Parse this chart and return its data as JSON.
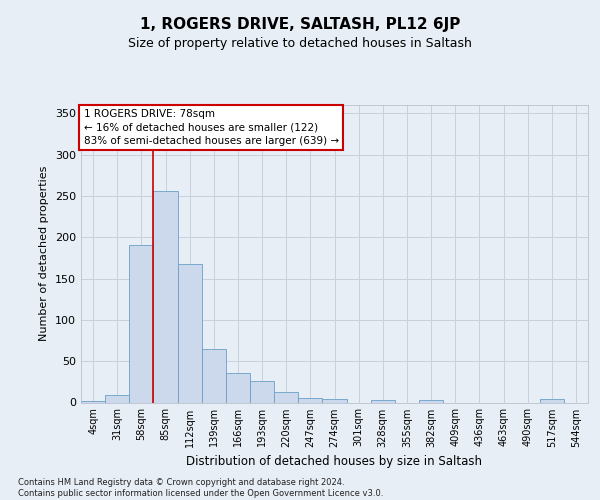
{
  "title": "1, ROGERS DRIVE, SALTASH, PL12 6JP",
  "subtitle": "Size of property relative to detached houses in Saltash",
  "xlabel": "Distribution of detached houses by size in Saltash",
  "ylabel": "Number of detached properties",
  "bar_labels": [
    "4sqm",
    "31sqm",
    "58sqm",
    "85sqm",
    "112sqm",
    "139sqm",
    "166sqm",
    "193sqm",
    "220sqm",
    "247sqm",
    "274sqm",
    "301sqm",
    "328sqm",
    "355sqm",
    "382sqm",
    "409sqm",
    "436sqm",
    "463sqm",
    "490sqm",
    "517sqm",
    "544sqm"
  ],
  "bar_values": [
    2,
    9,
    191,
    256,
    168,
    65,
    36,
    26,
    13,
    6,
    4,
    0,
    3,
    0,
    3,
    0,
    0,
    0,
    0,
    4,
    0
  ],
  "bar_color": "#ccd9ed",
  "bar_edge_color": "#6b9ec8",
  "grid_color": "#c8d0dc",
  "background_color": "#e8eef5",
  "red_line_bin_index": 3,
  "annotation_text": "1 ROGERS DRIVE: 78sqm\n← 16% of detached houses are smaller (122)\n83% of semi-detached houses are larger (639) →",
  "annotation_box_facecolor": "#ffffff",
  "annotation_box_edgecolor": "#cc0000",
  "footnote": "Contains HM Land Registry data © Crown copyright and database right 2024.\nContains public sector information licensed under the Open Government Licence v3.0.",
  "ylim": [
    0,
    360
  ],
  "yticks": [
    0,
    50,
    100,
    150,
    200,
    250,
    300,
    350
  ]
}
